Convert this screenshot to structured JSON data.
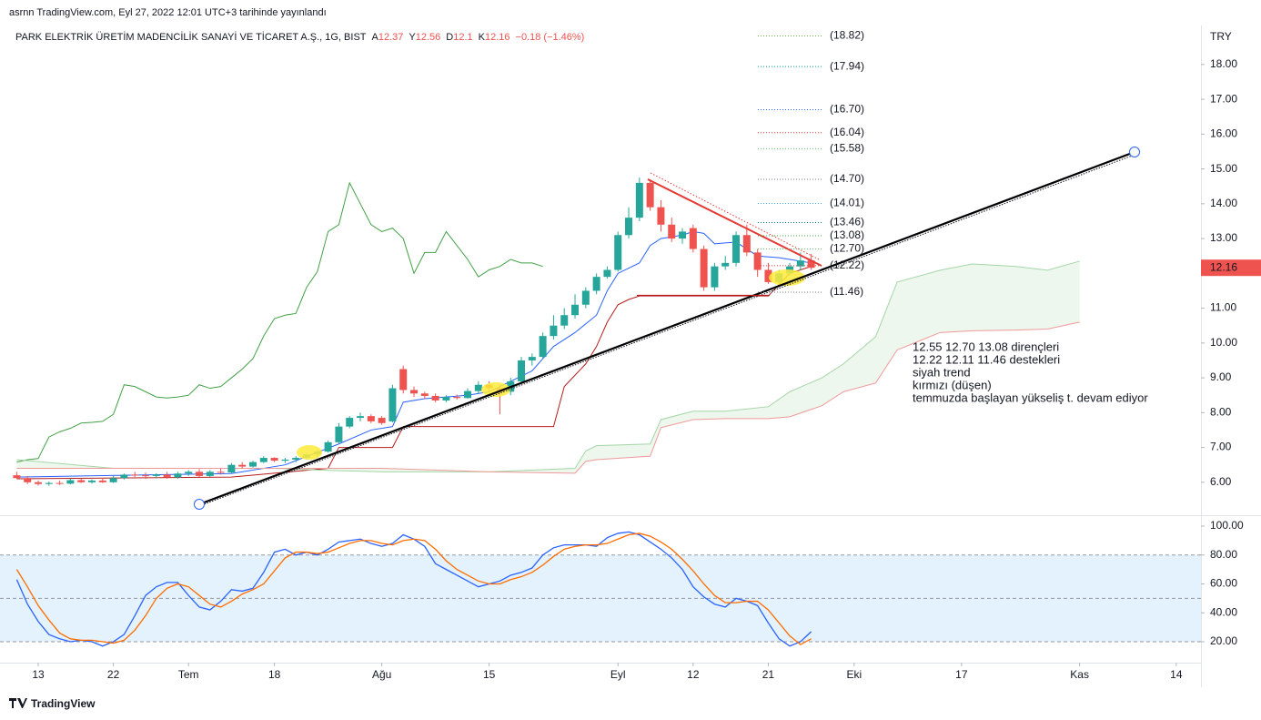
{
  "header": {
    "published": "asrnn TradingView.com, Eyl 27, 2022 12:01 UTC+3 tarihinde yayınlandı",
    "brand": "TradingView"
  },
  "chart_data": [
    {
      "type": "candlestick",
      "title": "PARK ELEKTRİK ÜRETİM MADENCİLİK SANAYİ VE TİCARET A.Ş., 1G, BIST",
      "legend": [
        {
          "key": "A",
          "value": 12.37
        },
        {
          "key": "Y",
          "value": 12.56
        },
        {
          "key": "D",
          "value": 12.1
        },
        {
          "key": "K",
          "value": 12.16
        }
      ],
      "change": "−0.18 (−1.46%)",
      "currency": "TRY",
      "up_color": "#26a69a",
      "down_color": "#ef5350",
      "open": [
        6.2,
        6.12,
        6.0,
        5.95,
        5.98,
        5.96,
        6.06,
        6.0,
        6.05,
        6.0,
        6.12,
        6.22,
        6.2,
        6.18,
        6.22,
        6.14,
        6.25,
        6.3,
        6.18,
        6.3,
        6.28,
        6.5,
        6.45,
        6.58,
        6.7,
        6.62,
        6.65,
        6.7,
        6.8,
        6.88,
        7.15,
        7.6,
        7.85,
        7.9,
        7.85,
        7.75,
        9.25,
        8.65,
        8.55,
        8.48,
        8.35,
        8.45,
        8.42,
        8.62,
        8.8,
        8.7,
        8.6,
        8.9,
        9.5,
        9.6,
        10.2,
        10.5,
        10.8,
        11.1,
        11.5,
        11.9,
        12.1,
        13.1,
        13.6,
        14.6,
        13.9,
        13.4,
        13.0,
        13.3,
        12.7,
        11.6,
        12.2,
        12.3,
        13.1,
        12.6,
        12.1,
        11.75,
        12.0,
        12.2,
        12.37
      ],
      "high": [
        6.3,
        6.18,
        6.05,
        6.02,
        6.05,
        6.1,
        6.1,
        6.08,
        6.1,
        6.18,
        6.25,
        6.3,
        6.28,
        6.26,
        6.3,
        6.3,
        6.35,
        6.38,
        6.35,
        6.4,
        6.55,
        6.58,
        6.62,
        6.75,
        6.72,
        6.7,
        6.75,
        6.85,
        6.95,
        7.2,
        7.7,
        7.9,
        8.0,
        7.95,
        7.9,
        8.8,
        9.35,
        8.75,
        8.6,
        8.55,
        8.5,
        8.52,
        8.7,
        8.9,
        8.9,
        8.8,
        9.0,
        9.6,
        9.7,
        10.3,
        10.8,
        11.0,
        11.4,
        11.6,
        12.0,
        12.2,
        13.2,
        13.9,
        14.75,
        14.7,
        14.1,
        13.6,
        13.3,
        13.4,
        12.8,
        12.3,
        12.5,
        13.2,
        13.4,
        12.7,
        12.3,
        12.1,
        12.3,
        12.6,
        12.56
      ],
      "low": [
        6.1,
        5.95,
        5.9,
        5.9,
        5.92,
        5.94,
        5.98,
        5.96,
        5.98,
        5.98,
        6.08,
        6.15,
        6.1,
        6.12,
        6.1,
        6.1,
        6.18,
        6.15,
        6.15,
        6.22,
        6.25,
        6.4,
        6.42,
        6.55,
        6.58,
        6.55,
        6.58,
        6.65,
        6.7,
        6.85,
        7.1,
        7.55,
        7.75,
        7.7,
        7.65,
        7.72,
        8.55,
        8.45,
        8.4,
        8.3,
        8.3,
        8.38,
        8.4,
        8.55,
        8.6,
        7.95,
        8.5,
        8.85,
        9.35,
        9.55,
        10.1,
        10.4,
        10.7,
        11.0,
        11.4,
        11.85,
        12.05,
        13.0,
        13.5,
        13.8,
        13.2,
        12.9,
        12.85,
        12.6,
        11.5,
        11.5,
        12.1,
        12.2,
        12.5,
        11.9,
        11.7,
        11.7,
        11.95,
        12.1,
        12.1
      ],
      "close": [
        6.12,
        6.0,
        5.95,
        5.98,
        5.96,
        6.06,
        6.0,
        6.05,
        6.0,
        6.12,
        6.22,
        6.2,
        6.18,
        6.22,
        6.14,
        6.25,
        6.3,
        6.18,
        6.3,
        6.28,
        6.5,
        6.45,
        6.58,
        6.7,
        6.62,
        6.65,
        6.7,
        6.8,
        6.88,
        7.15,
        7.6,
        7.85,
        7.9,
        7.75,
        7.7,
        8.7,
        8.65,
        8.55,
        8.48,
        8.35,
        8.45,
        8.42,
        8.62,
        8.8,
        8.7,
        8.6,
        8.9,
        9.5,
        9.6,
        10.2,
        10.5,
        10.8,
        11.1,
        11.5,
        11.9,
        12.1,
        13.1,
        13.6,
        14.6,
        13.9,
        13.4,
        13.0,
        13.2,
        12.7,
        11.6,
        12.2,
        12.3,
        13.1,
        12.6,
        12.1,
        11.75,
        12.0,
        12.2,
        12.37,
        12.16
      ],
      "series": [
        {
          "name": "Gecikme",
          "color": "#43a047",
          "x": [
            0,
            1,
            2,
            3,
            4,
            5,
            6,
            7,
            8,
            9,
            10,
            11,
            12,
            13,
            14,
            15,
            16,
            17,
            18,
            19,
            20,
            21,
            22,
            23,
            24,
            25,
            26,
            27,
            28,
            29,
            30,
            31,
            32,
            33,
            34,
            35,
            36,
            37,
            38,
            39,
            40,
            41,
            42,
            43,
            44,
            45,
            46,
            47,
            48,
            49
          ],
          "values": [
            6.58,
            6.65,
            6.68,
            7.3,
            7.45,
            7.55,
            7.7,
            7.72,
            7.75,
            7.95,
            8.8,
            8.75,
            8.6,
            8.45,
            8.42,
            8.45,
            8.5,
            8.8,
            8.7,
            8.75,
            9.0,
            9.25,
            9.55,
            10.2,
            10.7,
            10.8,
            10.85,
            11.6,
            12.05,
            13.2,
            13.4,
            14.6,
            14.0,
            13.4,
            13.2,
            13.3,
            13.0,
            12.0,
            12.6,
            12.6,
            13.2,
            12.8,
            12.4,
            11.9,
            12.1,
            12.2,
            12.4,
            12.3,
            12.3,
            12.2
          ]
        },
        {
          "name": "Dönüşüm",
          "color": "#2962ff",
          "x": [
            0,
            10,
            20,
            25,
            30,
            33,
            35,
            36,
            38,
            40,
            42,
            44,
            46,
            48,
            50,
            52,
            54,
            55,
            56,
            58,
            59,
            60,
            62,
            63,
            64,
            65,
            67,
            69,
            71,
            72,
            74
          ],
          "values": [
            6.15,
            6.2,
            6.25,
            6.5,
            7.1,
            7.5,
            7.6,
            8.3,
            8.4,
            8.45,
            8.5,
            8.6,
            8.9,
            9.2,
            9.9,
            10.3,
            10.8,
            11.5,
            12.0,
            12.3,
            12.8,
            13.0,
            13.1,
            13.2,
            13.15,
            12.85,
            12.9,
            12.5,
            12.45,
            12.4,
            12.3
          ]
        },
        {
          "name": "Baz",
          "color": "#b71c1c",
          "x": [
            0,
            20,
            29,
            30,
            35,
            36,
            50,
            51,
            53,
            54,
            55,
            56,
            57,
            58,
            70,
            72,
            74
          ],
          "values": [
            6.1,
            6.15,
            6.4,
            7.0,
            7.0,
            7.6,
            7.6,
            8.75,
            9.4,
            9.9,
            10.6,
            11.1,
            11.25,
            11.35,
            11.35,
            12.0,
            12.2
          ]
        },
        {
          "name": "Öncü A",
          "color": "#a5d6a7",
          "x": [
            0,
            9,
            24,
            28,
            34,
            44,
            52,
            53,
            54,
            59,
            60,
            63,
            66,
            70,
            72,
            75,
            77,
            80,
            82,
            86,
            89,
            93,
            96,
            99
          ],
          "values": [
            6.65,
            6.4,
            6.4,
            6.35,
            6.3,
            6.3,
            6.4,
            6.9,
            7.05,
            7.1,
            7.8,
            8.04,
            8.04,
            8.17,
            8.6,
            9.0,
            9.4,
            10.18,
            11.75,
            12.09,
            12.27,
            12.2,
            12.09,
            12.35
          ]
        },
        {
          "name": "Öncü B",
          "color": "#ef9a9a",
          "x": [
            0,
            9,
            24,
            28,
            34,
            44,
            52,
            53,
            54,
            59,
            60,
            63,
            66,
            70,
            72,
            75,
            77,
            80,
            82,
            86,
            89,
            93,
            96,
            99
          ],
          "values": [
            6.4,
            6.4,
            6.4,
            6.4,
            6.4,
            6.3,
            6.26,
            6.6,
            6.65,
            6.75,
            7.57,
            7.8,
            7.83,
            7.83,
            7.88,
            8.2,
            8.6,
            8.85,
            9.8,
            10.3,
            10.35,
            10.37,
            10.4,
            10.6
          ]
        }
      ],
      "levels": [
        {
          "value": 18.82,
          "label": "(18.82)",
          "color": "#6aa84f"
        },
        {
          "value": 17.94,
          "label": "(17.94)",
          "color": "#009688"
        },
        {
          "value": 16.7,
          "label": "(16.70)",
          "color": "#2962ff"
        },
        {
          "value": 16.04,
          "label": "(16.04)",
          "color": "#e53935"
        },
        {
          "value": 15.58,
          "label": "(15.58)",
          "color": "#66bb6a"
        },
        {
          "value": 14.7,
          "label": "(14.70)",
          "color": "#787b86"
        },
        {
          "value": 14.01,
          "label": "(14.01)",
          "color": "#42a5f5"
        },
        {
          "value": 13.46,
          "label": "(13.46)",
          "color": "#00897b"
        },
        {
          "value": 13.08,
          "label": "(13.08)",
          "color": "#43a047"
        },
        {
          "value": 12.7,
          "label": "(12.70)",
          "color": "#66bb6a"
        },
        {
          "value": 12.22,
          "label": "(12.22)",
          "color": "#e53935"
        },
        {
          "value": 11.46,
          "label": "(11.46)",
          "color": "#787b86"
        }
      ],
      "annotation": [
        "12.55 12.70 13.08 dirençleri",
        "12.22 12.11 11.46 destekleri",
        "siyah trend",
        "kırmızı (düşen)",
        "temmuzda başlayan yükseliş t. devam ediyor"
      ],
      "xlim": [
        -1.56,
        110.3
      ],
      "xticks": [
        {
          "value": 2,
          "label": "13"
        },
        {
          "value": 9,
          "label": "22"
        },
        {
          "value": 16,
          "label": "Tem"
        },
        {
          "value": 24,
          "label": "18"
        },
        {
          "value": 34,
          "label": "Ağu"
        },
        {
          "value": 44,
          "label": "15"
        },
        {
          "value": 56,
          "label": "Eyl"
        },
        {
          "value": 63,
          "label": "12"
        },
        {
          "value": 70,
          "label": "21"
        },
        {
          "value": 78,
          "label": "Eki"
        },
        {
          "value": 88,
          "label": "17"
        },
        {
          "value": 99,
          "label": "Kas"
        },
        {
          "value": 108,
          "label": "14"
        }
      ],
      "ylim": [
        5.08,
        19.12
      ],
      "yticks": [
        {
          "value": 18,
          "label": "18.00"
        },
        {
          "value": 17,
          "label": "17.00"
        },
        {
          "value": 16,
          "label": "16.00"
        },
        {
          "value": 15,
          "label": "15.00"
        },
        {
          "value": 14,
          "label": "14.00"
        },
        {
          "value": 13,
          "label": "13.00"
        },
        {
          "value": 11,
          "label": "11.00"
        },
        {
          "value": 10,
          "label": "10.00"
        },
        {
          "value": 9,
          "label": "9.00"
        },
        {
          "value": 8,
          "label": "8.00"
        },
        {
          "value": 7,
          "label": "7.00"
        },
        {
          "value": 6,
          "label": "6.00"
        }
      ]
    },
    {
      "type": "line",
      "ylim": [
        5.5,
        106.3
      ],
      "yticks": [
        {
          "value": 100,
          "label": "100.00"
        },
        {
          "value": 80,
          "label": "80.00"
        },
        {
          "value": 60,
          "label": "60.00"
        },
        {
          "value": 40,
          "label": "40.00"
        },
        {
          "value": 20,
          "label": "20.00"
        }
      ],
      "band": [
        20,
        80
      ],
      "band_color": "#e3f2fd",
      "hlines": [
        80,
        50,
        20
      ],
      "series": [
        {
          "name": "%K",
          "color": "#2962ff",
          "values": [
            63,
            46,
            34,
            25,
            22,
            20,
            21,
            20,
            17,
            20,
            25,
            38,
            52,
            58,
            61,
            61,
            52,
            44,
            42,
            48,
            56,
            55,
            57,
            68,
            82,
            84,
            80,
            82,
            80,
            84,
            89,
            90,
            91,
            88,
            86,
            88,
            94,
            91,
            86,
            74,
            70,
            66,
            62,
            58,
            60,
            62,
            66,
            68,
            71,
            80,
            85,
            87,
            87,
            87,
            86,
            92,
            95,
            96,
            94,
            89,
            84,
            78,
            70,
            58,
            51,
            46,
            44,
            50,
            48,
            45,
            33,
            22,
            17,
            20,
            27
          ]
        },
        {
          "name": "%D",
          "color": "#ff6d00",
          "values": [
            70,
            58,
            45,
            35,
            26,
            22,
            21,
            21,
            20,
            19,
            21,
            28,
            38,
            50,
            57,
            60,
            58,
            52,
            46,
            44,
            48,
            53,
            56,
            60,
            69,
            78,
            82,
            82,
            81,
            82,
            85,
            88,
            90,
            90,
            88,
            87,
            90,
            91,
            90,
            84,
            76,
            70,
            66,
            62,
            60,
            60,
            63,
            65,
            68,
            73,
            79,
            84,
            86,
            87,
            87,
            88,
            91,
            94,
            95,
            93,
            89,
            84,
            77,
            69,
            60,
            52,
            47,
            47,
            48,
            48,
            42,
            33,
            24,
            18,
            22
          ]
        }
      ]
    }
  ]
}
